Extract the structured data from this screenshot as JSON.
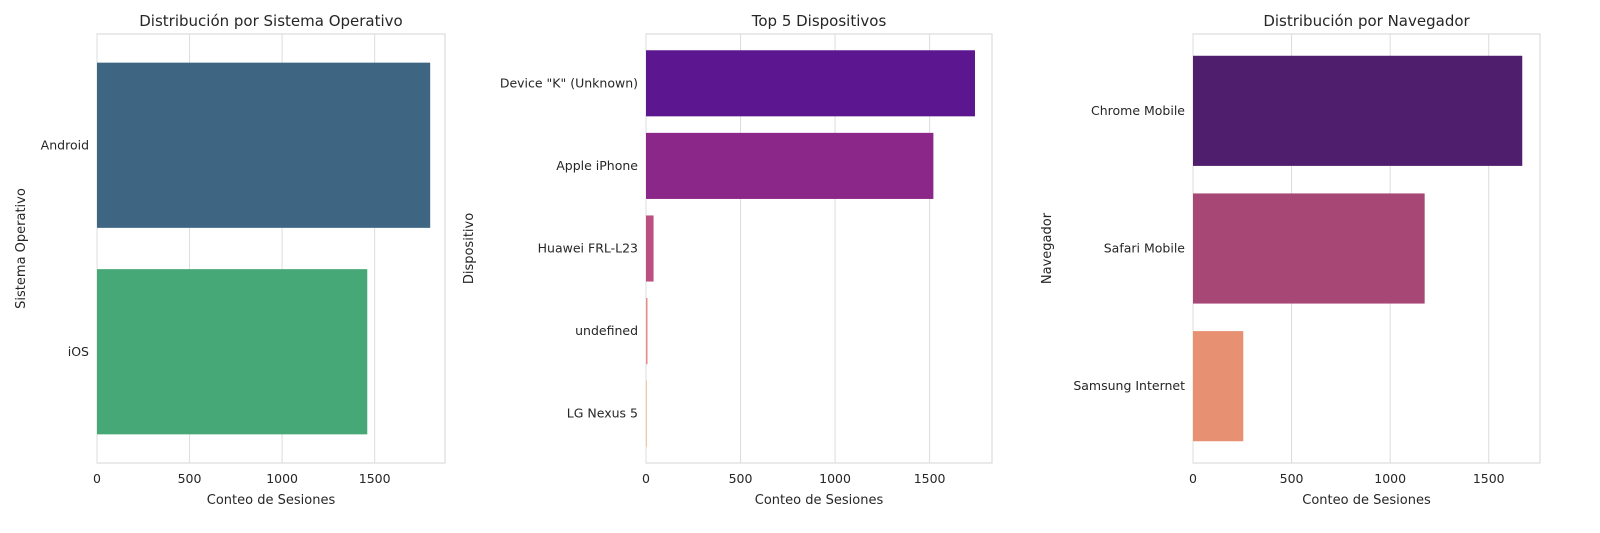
{
  "chart_data": [
    {
      "type": "bar",
      "orientation": "horizontal",
      "title": "Distribución por Sistema Operativo",
      "xlabel": "Conteo de Sesiones",
      "ylabel": "Sistema Operativo",
      "categories": [
        "Android",
        "iOS"
      ],
      "values": [
        1800,
        1460
      ],
      "colors": [
        "#3e6682",
        "#47a877"
      ],
      "xlim": [
        0,
        1880
      ],
      "xticks": [
        0,
        500,
        1000,
        1500
      ],
      "grid": true
    },
    {
      "type": "bar",
      "orientation": "horizontal",
      "title": "Top 5 Dispositivos",
      "xlabel": "Conteo de Sesiones",
      "ylabel": "Dispositivo",
      "categories": [
        "Device \"K\" (Unknown)",
        "Apple iPhone",
        "Huawei FRL-L23",
        "undefined",
        "LG Nexus 5"
      ],
      "values": [
        1740,
        1520,
        40,
        8,
        3
      ],
      "colors": [
        "#5c168f",
        "#8a2788",
        "#bb4f7f",
        "#e88d89",
        "#f0c8a6"
      ],
      "xlim": [
        0,
        1830
      ],
      "xticks": [
        0,
        500,
        1000,
        1500
      ],
      "grid": true
    },
    {
      "type": "bar",
      "orientation": "horizontal",
      "title": "Distribución por Navegador",
      "xlabel": "Conteo de Sesiones",
      "ylabel": "Navegador",
      "categories": [
        "Chrome Mobile",
        "Safari Mobile",
        "Samsung Internet"
      ],
      "values": [
        1670,
        1175,
        255
      ],
      "colors": [
        "#4f1e6c",
        "#a74775",
        "#e89172"
      ],
      "xlim": [
        0,
        1760
      ],
      "xticks": [
        0,
        500,
        1000,
        1500
      ],
      "grid": true
    }
  ]
}
